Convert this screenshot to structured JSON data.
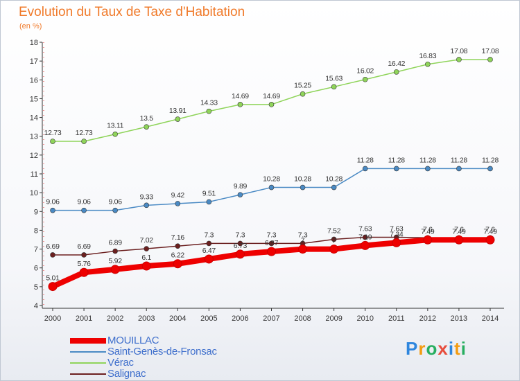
{
  "header": {
    "title": "Evolution du Taux de Taxe d'Habitation",
    "subtitle": "(en %)"
  },
  "logo": {
    "letters": [
      {
        "char": "P",
        "color": "#2e86de"
      },
      {
        "char": "r",
        "color": "#f39c12"
      },
      {
        "char": "o",
        "color": "#27ae60"
      },
      {
        "char": "x",
        "color": "#e74c3c"
      },
      {
        "char": "i",
        "color": "#2e86de"
      },
      {
        "char": "t",
        "color": "#f39c12"
      },
      {
        "char": "i",
        "color": "#27ae60"
      }
    ]
  },
  "chart_data": {
    "type": "line",
    "title": "Evolution du Taux de Taxe d'Habitation",
    "subtitle": "(en %)",
    "xlabel": "",
    "ylabel": "",
    "x": [
      "2000",
      "2001",
      "2002",
      "2003",
      "2004",
      "2005",
      "2006",
      "2007",
      "2008",
      "2009",
      "2010",
      "2011",
      "2012",
      "2013",
      "2014"
    ],
    "ylim": [
      4,
      18
    ],
    "yticks": [
      "4",
      "5",
      "6",
      "7",
      "8",
      "9",
      "10",
      "11",
      "12",
      "13",
      "14",
      "15",
      "16",
      "17",
      "18"
    ],
    "grid": false,
    "legend_position": "bottom-left",
    "series": [
      {
        "name": "MOUILLAC",
        "color": "#ee0000",
        "values": [
          5.01,
          5.76,
          5.92,
          6.1,
          6.22,
          6.47,
          6.73,
          6.87,
          7.0,
          7.0,
          7.19,
          7.34,
          7.49,
          7.49,
          7.49
        ],
        "labels": [
          "5.01",
          "5.76",
          "5.92",
          "6.1",
          "6.22",
          "6.47",
          "6.73",
          "6.87",
          "7",
          "7",
          "7.19",
          "7.34",
          "7.49",
          "7.49",
          "7.49"
        ]
      },
      {
        "name": "Saint-Genès-de-Fronsac",
        "color": "#4a8ac4",
        "values": [
          9.06,
          9.06,
          9.06,
          9.33,
          9.42,
          9.51,
          9.89,
          10.28,
          10.28,
          10.28,
          11.28,
          11.28,
          11.28,
          11.28,
          11.28
        ],
        "labels": [
          "9.06",
          "9.06",
          "9.06",
          "9.33",
          "9.42",
          "9.51",
          "9.89",
          "10.28",
          "10.28",
          "10.28",
          "11.28",
          "11.28",
          "11.28",
          "11.28",
          "11.28"
        ]
      },
      {
        "name": "Vérac",
        "color": "#8fd45a",
        "values": [
          12.73,
          12.73,
          13.11,
          13.5,
          13.91,
          14.33,
          14.69,
          14.69,
          15.25,
          15.63,
          16.02,
          16.42,
          16.83,
          17.08,
          17.08
        ],
        "labels": [
          "12.73",
          "12.73",
          "13.11",
          "13.5",
          "13.91",
          "14.33",
          "14.69",
          "14.69",
          "15.25",
          "15.63",
          "16.02",
          "16.42",
          "16.83",
          "17.08",
          "17.08"
        ]
      },
      {
        "name": "Salignac",
        "color": "#6b1f1f",
        "values": [
          6.69,
          6.69,
          6.89,
          7.02,
          7.16,
          7.3,
          7.3,
          7.3,
          7.3,
          7.52,
          7.63,
          7.63,
          7.6,
          7.6,
          7.6
        ],
        "labels": [
          "6.69",
          "6.69",
          "6.89",
          "7.02",
          "7.16",
          "7.3",
          "7.3",
          "7.3",
          "7.3",
          "7.52",
          "7.63",
          "7.63",
          "7.6",
          "7.6",
          "7.6"
        ]
      }
    ]
  }
}
